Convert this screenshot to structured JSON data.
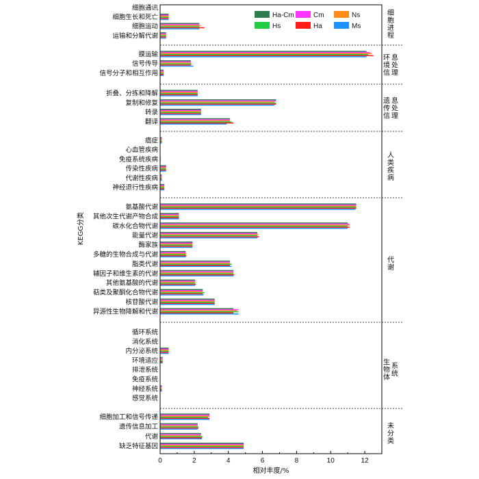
{
  "chart_data": {
    "type": "bar",
    "orientation": "horizontal",
    "xlabel": "相对丰度/%",
    "ylabel": "KEGG分类",
    "xlim": [
      0,
      13
    ],
    "xticks": [
      "0",
      "2",
      "4",
      "6",
      "8",
      "10",
      "12"
    ],
    "legend_position": "top-right",
    "series": [
      {
        "name": "Ha-Cm",
        "color": "#2e7d4f"
      },
      {
        "name": "Cm",
        "color": "#ff33ff"
      },
      {
        "name": "Ns",
        "color": "#ff8c1a"
      },
      {
        "name": "Hs",
        "color": "#22cc44"
      },
      {
        "name": "Ha",
        "color": "#ff1a1a"
      },
      {
        "name": "Ms",
        "color": "#1e90ff"
      }
    ],
    "groups": [
      {
        "name": "细胞进程",
        "categories": [
          {
            "label": "细胞通讯",
            "values": [
              0.02,
              0.02,
              0.02,
              0.02,
              0.02,
              0.02
            ]
          },
          {
            "label": "细胞生长和死亡",
            "values": [
              0.5,
              0.5,
              0.5,
              0.5,
              0.5,
              0.5
            ]
          },
          {
            "label": "细胞运动",
            "values": [
              2.3,
              2.3,
              2.4,
              2.3,
              2.6,
              2.3
            ]
          },
          {
            "label": "运输和分解代谢",
            "values": [
              0.35,
              0.35,
              0.35,
              0.35,
              0.35,
              0.35
            ]
          }
        ]
      },
      {
        "name": "环境信息处理",
        "categories": [
          {
            "label": "膜运输",
            "values": [
              12.1,
              12.3,
              12.4,
              12.2,
              12.5,
              12.1
            ]
          },
          {
            "label": "信号传导",
            "values": [
              1.8,
              1.8,
              1.8,
              1.85,
              1.8,
              1.95
            ]
          },
          {
            "label": "信号分子和相互作用",
            "values": [
              0.2,
              0.2,
              0.2,
              0.2,
              0.2,
              0.2
            ]
          }
        ]
      },
      {
        "name": "遗传信息处理",
        "categories": [
          {
            "label": "折叠、分拣和降解",
            "values": [
              2.2,
              2.2,
              2.2,
              2.2,
              2.2,
              2.2
            ]
          },
          {
            "label": "复制和修复",
            "values": [
              6.8,
              6.8,
              6.7,
              6.8,
              6.8,
              6.7
            ]
          },
          {
            "label": "转录",
            "values": [
              2.4,
              2.4,
              2.4,
              2.4,
              2.4,
              2.4
            ]
          },
          {
            "label": "翻译",
            "values": [
              4.1,
              4.1,
              4.1,
              4.2,
              4.3,
              3.9
            ]
          }
        ]
      },
      {
        "name": "人类疾病",
        "categories": [
          {
            "label": "癌症",
            "values": [
              0.1,
              0.1,
              0.1,
              0.1,
              0.1,
              0.1
            ]
          },
          {
            "label": "心血管疾病",
            "values": [
              0.02,
              0.02,
              0.02,
              0.02,
              0.02,
              0.02
            ]
          },
          {
            "label": "免疫系统疾病",
            "values": [
              0.03,
              0.03,
              0.03,
              0.03,
              0.03,
              0.03
            ]
          },
          {
            "label": "传染性疾病",
            "values": [
              0.35,
              0.35,
              0.35,
              0.35,
              0.35,
              0.35
            ]
          },
          {
            "label": "代谢性疾病",
            "values": [
              0.1,
              0.1,
              0.1,
              0.1,
              0.1,
              0.1
            ]
          },
          {
            "label": "神经退行性疾病",
            "values": [
              0.25,
              0.25,
              0.25,
              0.25,
              0.25,
              0.25
            ]
          }
        ]
      },
      {
        "name": "代谢",
        "categories": [
          {
            "label": "氨基酸代谢",
            "values": [
              11.5,
              11.5,
              11.5,
              11.5,
              11.5,
              11.45
            ]
          },
          {
            "label": "其他次生代谢产物合成",
            "values": [
              1.1,
              1.1,
              1.1,
              1.1,
              1.1,
              1.1
            ]
          },
          {
            "label": "碳水化合物代谢",
            "values": [
              11.0,
              11.1,
              11.1,
              11.0,
              11.1,
              11.0
            ]
          },
          {
            "label": "能量代谢",
            "values": [
              5.7,
              5.7,
              5.75,
              5.7,
              5.8,
              5.7
            ]
          },
          {
            "label": "酶家族",
            "values": [
              1.9,
              1.9,
              1.9,
              1.9,
              1.9,
              1.9
            ]
          },
          {
            "label": "多糖的生物合成与代谢",
            "values": [
              1.5,
              1.5,
              1.55,
              1.5,
              1.55,
              1.5
            ]
          },
          {
            "label": "脂类代谢",
            "values": [
              4.1,
              4.1,
              4.1,
              4.2,
              4.1,
              4.2
            ]
          },
          {
            "label": "辅因子和维生素的代谢",
            "values": [
              4.3,
              4.3,
              4.3,
              4.3,
              4.35,
              4.3
            ]
          },
          {
            "label": "其他氨基酸的代谢",
            "values": [
              2.05,
              2.05,
              2.05,
              2.05,
              2.1,
              2.05
            ]
          },
          {
            "label": "萜类及聚酮化合物代谢",
            "values": [
              2.5,
              2.5,
              2.5,
              2.6,
              2.5,
              2.55
            ]
          },
          {
            "label": "核苷酸代谢",
            "values": [
              3.2,
              3.2,
              3.2,
              3.2,
              3.2,
              3.2
            ]
          },
          {
            "label": "异源性生物降解和代谢",
            "values": [
              4.3,
              4.6,
              4.5,
              4.6,
              4.3,
              4.6
            ]
          }
        ]
      },
      {
        "name": "生物体系统",
        "categories": [
          {
            "label": "循环系统",
            "values": [
              0.01,
              0.01,
              0.01,
              0.01,
              0.01,
              0.01
            ]
          },
          {
            "label": "消化系统",
            "values": [
              0.01,
              0.01,
              0.01,
              0.01,
              0.01,
              0.01
            ]
          },
          {
            "label": "内分泌系统",
            "values": [
              0.5,
              0.5,
              0.5,
              0.5,
              0.5,
              0.5
            ]
          },
          {
            "label": "环境适应",
            "values": [
              0.15,
              0.15,
              0.15,
              0.15,
              0.15,
              0.15
            ]
          },
          {
            "label": "排泄系统",
            "values": [
              0.02,
              0.02,
              0.02,
              0.02,
              0.02,
              0.02
            ]
          },
          {
            "label": "免疫系统",
            "values": [
              0.02,
              0.02,
              0.02,
              0.02,
              0.02,
              0.02
            ]
          },
          {
            "label": "神经系统",
            "values": [
              0.1,
              0.1,
              0.1,
              0.1,
              0.1,
              0.1
            ]
          },
          {
            "label": "感觉系统",
            "values": [
              0.01,
              0.01,
              0.01,
              0.01,
              0.01,
              0.01
            ]
          }
        ]
      },
      {
        "name": "未分类",
        "categories": [
          {
            "label": "细胞加工和信号传递",
            "values": [
              2.9,
              2.9,
              2.9,
              2.8,
              2.9,
              2.9
            ]
          },
          {
            "label": "遗传信息加工",
            "values": [
              2.2,
              2.2,
              2.2,
              2.25,
              2.25,
              2.2
            ]
          },
          {
            "label": "代谢",
            "values": [
              2.4,
              2.4,
              2.4,
              2.5,
              2.45,
              2.45
            ]
          },
          {
            "label": "缺乏特征基因",
            "values": [
              4.9,
              4.9,
              4.9,
              4.9,
              4.9,
              4.9
            ]
          }
        ]
      }
    ]
  }
}
